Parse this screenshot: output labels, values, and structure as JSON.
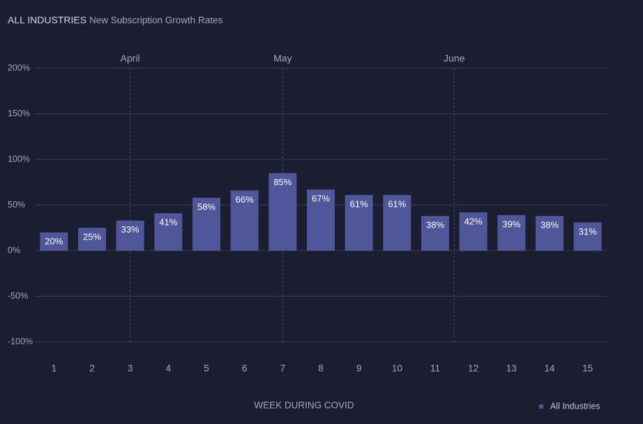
{
  "chart_data": {
    "type": "bar",
    "title": "ALL INDUSTRIES",
    "subtitle": "New Subscription Growth Rates",
    "x_label": "WEEK DURING COVID",
    "categories": [
      "1",
      "2",
      "3",
      "4",
      "5",
      "6",
      "7",
      "8",
      "9",
      "10",
      "11",
      "12",
      "13",
      "14",
      "15"
    ],
    "series": [
      {
        "name": "All Industries",
        "color": "#4f5699",
        "values": [
          20,
          25,
          33,
          41,
          58,
          66,
          85,
          67,
          61,
          61,
          38,
          42,
          39,
          38,
          31
        ],
        "value_labels": [
          "20%",
          "25%",
          "33%",
          "41%",
          "58%",
          "66%",
          "85%",
          "67%",
          "61%",
          "61%",
          "38%",
          "42%",
          "39%",
          "38%",
          "31%"
        ]
      }
    ],
    "ylim": [
      -100,
      200
    ],
    "yticks": [
      {
        "value": -100,
        "label": "-100%"
      },
      {
        "value": -50,
        "label": "-50%"
      },
      {
        "value": 0,
        "label": "0%"
      },
      {
        "value": 50,
        "label": "50%"
      },
      {
        "value": 100,
        "label": "100%"
      },
      {
        "value": 150,
        "label": "150%"
      },
      {
        "value": 200,
        "label": "200%"
      }
    ],
    "grid": true,
    "month_markers": [
      {
        "label": "April",
        "week": 3
      },
      {
        "label": "May",
        "week": 7
      },
      {
        "label": "June",
        "week": 11.5
      }
    ],
    "legend": "bottom-right"
  }
}
